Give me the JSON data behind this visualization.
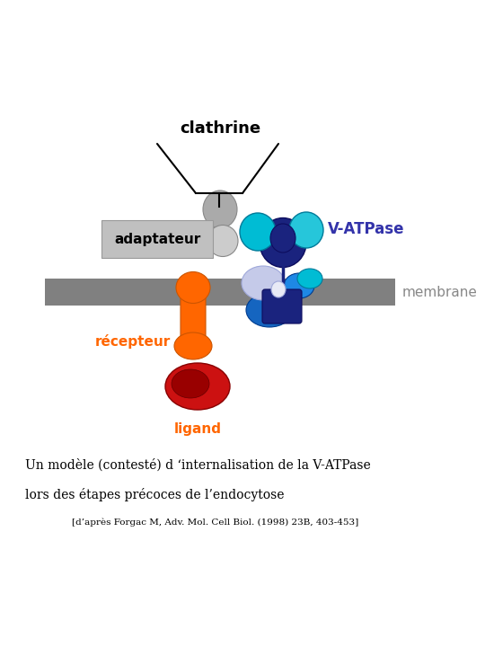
{
  "bg_color": "#ffffff",
  "membrane_color": "#808080",
  "clathrine_label": "clathrine",
  "adaptateur_label": "adaptateur",
  "vatpase_label": "V-ATPase",
  "membrane_label": "membrane",
  "recepteur_label": "récepteur",
  "ligand_label": "ligand",
  "caption_line1": "Un modèle (contesté) d ‘internalisation de la V-ATPase",
  "caption_line2": "lors des étapes précoces de l’endocytose",
  "caption_line3": "[d’après Forgac M, Adv. Mol. Cell Biol. (1998) 23B, 403-453]",
  "orange_color": "#FF6600",
  "red_color": "#CC1111",
  "dark_red_color": "#990000",
  "dark_blue_color": "#1A237E",
  "medium_blue_color": "#1565C0",
  "light_blue_color": "#42A5F5",
  "cyan_color": "#00BCD4",
  "cyan2_color": "#26C6DA",
  "steel_blue": "#1E88E5",
  "periwinkle": "#C5CAE9",
  "gray_dark": "#888888",
  "gray_med": "#AAAAAA",
  "gray_light": "#CCCCCC",
  "vatpase_text_color": "#3333AA",
  "recepteur_text_color": "#FF6600",
  "ligand_text_color": "#FF6600",
  "adaptateur_bg": "#C0C0C0",
  "adaptateur_edge": "#999999",
  "membrane_label_color": "#888888"
}
